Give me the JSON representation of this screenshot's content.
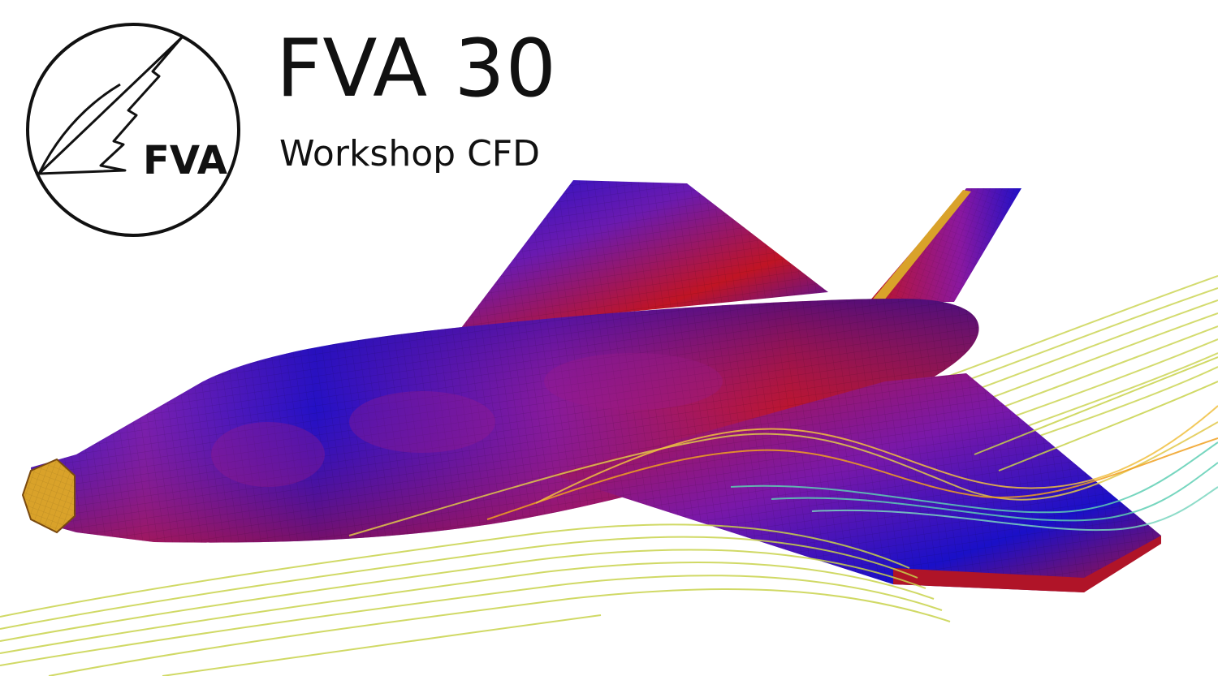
{
  "logo": {
    "text": "FVA"
  },
  "header": {
    "title": "FVA 30",
    "subtitle": "Workshop CFD"
  },
  "visual": {
    "subject": "glider fuselage and wing surface mesh with streamlines",
    "colors": {
      "surface_low": "#1a10c8",
      "surface_high": "#c8141c",
      "streamline_main": "#c8d24a",
      "streamline_wake": "#5ecfb4",
      "streamline_core": "#f0a020",
      "nose_cap": "#d9a22a"
    }
  }
}
